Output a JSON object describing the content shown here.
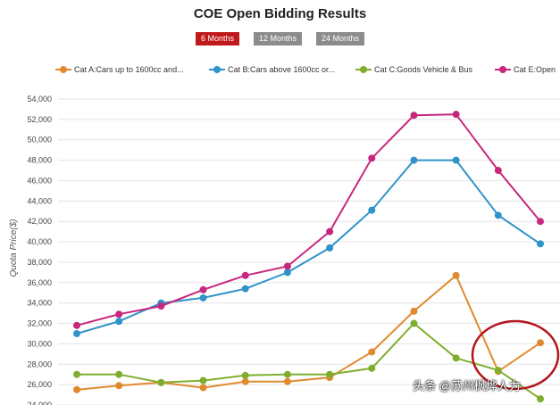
{
  "chart_data": {
    "type": "line",
    "title": "COE Open Bidding Results",
    "ylabel": "Quota Price($)",
    "xlabel": "",
    "ylim": [
      24000,
      54000
    ],
    "y_ticks": [
      54000,
      52000,
      50000,
      48000,
      46000,
      44000,
      42000,
      40000,
      38000,
      36000,
      34000,
      32000,
      30000,
      28000,
      26000,
      24000
    ],
    "y_tick_labels": [
      "54,000",
      "52,000",
      "50,000",
      "48,000",
      "46,000",
      "44,000",
      "42,000",
      "40,000",
      "38,000",
      "36,000",
      "34,000",
      "32,000",
      "30,000",
      "28,000",
      "26,000",
      "24,000"
    ],
    "grid": true,
    "legend_position": "top",
    "series": [
      {
        "name": "Cat A:Cars up to 1600cc and...",
        "color": "#e08a2e",
        "values": [
          25500,
          25900,
          26200,
          25700,
          26300,
          26300,
          26700,
          29200,
          33200,
          36700,
          27300,
          30100
        ]
      },
      {
        "name": "Cat B:Cars above 1600cc or...",
        "color": "#2f93c9",
        "values": [
          31000,
          32200,
          34000,
          34500,
          35400,
          37000,
          39400,
          43100,
          48000,
          48000,
          42600,
          39800
        ]
      },
      {
        "name": "Cat C:Goods Vehicle & Bus",
        "color": "#7fae2e",
        "values": [
          27000,
          27000,
          26200,
          26400,
          26900,
          27000,
          27000,
          27600,
          32000,
          28600,
          27400,
          24600
        ]
      },
      {
        "name": "Cat E:Open",
        "color": "#c8277e",
        "values": [
          31800,
          32900,
          33700,
          35300,
          36700,
          37600,
          41000,
          48200,
          52400,
          52500,
          47000,
          42000
        ]
      }
    ]
  },
  "range_buttons": [
    {
      "label": "6 Months",
      "color": "#c0191c"
    },
    {
      "label": "12 Months",
      "color": "#8c8c8c"
    },
    {
      "label": "24 Months",
      "color": "#8c8c8c"
    }
  ],
  "annotation": {
    "type": "circle",
    "color": "#b3151b"
  },
  "watermark": "头条 @苏州枫烨人力"
}
